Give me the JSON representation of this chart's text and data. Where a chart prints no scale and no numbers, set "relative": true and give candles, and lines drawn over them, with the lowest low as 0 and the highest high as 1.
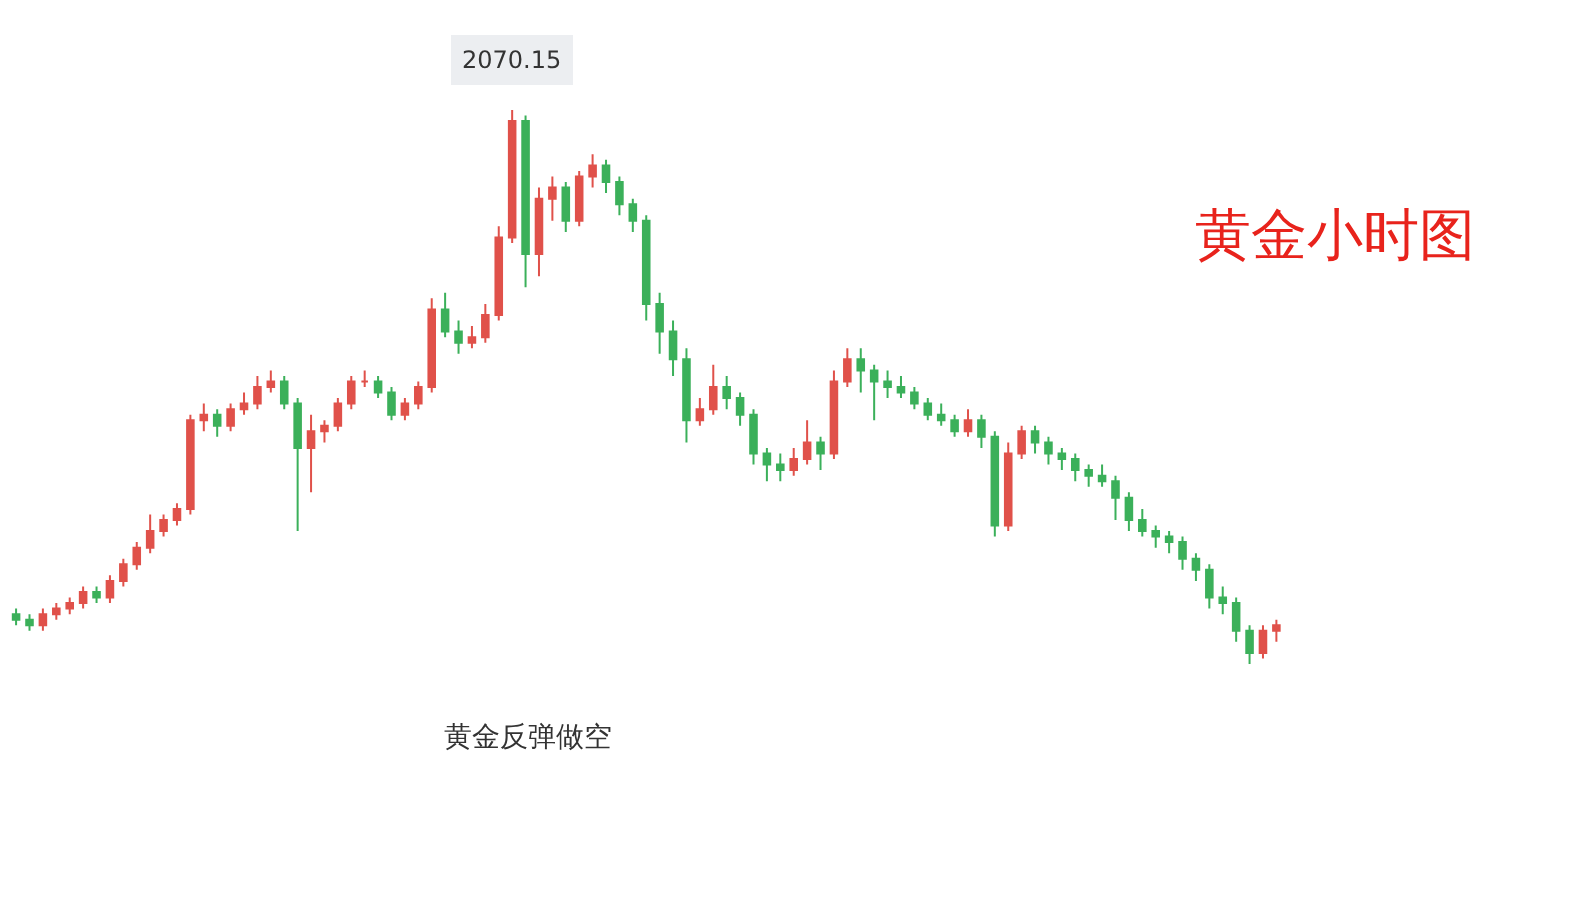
{
  "chart_data": {
    "type": "candlestick",
    "title": "黄金小时图",
    "relative": true,
    "legend": false,
    "annotations": [
      {
        "text": "2070.15",
        "y": 1.0
      },
      "黄金反弹做空"
    ],
    "categories": [
      null,
      null,
      null,
      null,
      null,
      null,
      null,
      null,
      null,
      null,
      null,
      null,
      null,
      null,
      null,
      null,
      null,
      null,
      null,
      null,
      null,
      null,
      null,
      null,
      null,
      null,
      null,
      null,
      null,
      null,
      null,
      null,
      null,
      null,
      null,
      null,
      null,
      null,
      null,
      null,
      null,
      null,
      null,
      null,
      null,
      null,
      null,
      null,
      null,
      null,
      null,
      null,
      null,
      null,
      null,
      null,
      null,
      null,
      null,
      null,
      null,
      null,
      null,
      null,
      null,
      null,
      null,
      null,
      null,
      null,
      null,
      null,
      null,
      null,
      null,
      null,
      null,
      null,
      null,
      null,
      null,
      null,
      null,
      null,
      null,
      null,
      null,
      null,
      null,
      null,
      null,
      null,
      null,
      null,
      null
    ],
    "ohlc": [
      [
        0.09,
        0.1,
        0.07,
        0.08
      ],
      [
        0.08,
        0.09,
        0.06,
        0.07
      ],
      [
        0.07,
        0.1,
        0.06,
        0.09
      ],
      [
        0.09,
        0.11,
        0.08,
        0.1
      ],
      [
        0.1,
        0.12,
        0.09,
        0.11
      ],
      [
        0.11,
        0.14,
        0.1,
        0.13
      ],
      [
        0.13,
        0.14,
        0.11,
        0.12
      ],
      [
        0.12,
        0.16,
        0.11,
        0.15
      ],
      [
        0.15,
        0.19,
        0.14,
        0.18
      ],
      [
        0.18,
        0.22,
        0.17,
        0.21
      ],
      [
        0.21,
        0.27,
        0.2,
        0.24
      ],
      [
        0.24,
        0.27,
        0.23,
        0.26
      ],
      [
        0.26,
        0.29,
        0.25,
        0.28
      ],
      [
        0.28,
        0.45,
        0.27,
        0.44
      ],
      [
        0.44,
        0.47,
        0.42,
        0.45
      ],
      [
        0.45,
        0.46,
        0.41,
        0.43
      ],
      [
        0.43,
        0.47,
        0.42,
        0.46
      ],
      [
        0.46,
        0.49,
        0.45,
        0.47
      ],
      [
        0.47,
        0.52,
        0.46,
        0.5
      ],
      [
        0.5,
        0.53,
        0.49,
        0.51
      ],
      [
        0.51,
        0.52,
        0.46,
        0.47
      ],
      [
        0.47,
        0.48,
        0.24,
        0.39
      ],
      [
        0.39,
        0.45,
        0.31,
        0.42
      ],
      [
        0.42,
        0.44,
        0.4,
        0.43
      ],
      [
        0.43,
        0.48,
        0.42,
        0.47
      ],
      [
        0.47,
        0.52,
        0.46,
        0.51
      ],
      [
        0.51,
        0.53,
        0.5,
        0.51
      ],
      [
        0.51,
        0.52,
        0.48,
        0.49
      ],
      [
        0.49,
        0.5,
        0.44,
        0.45
      ],
      [
        0.45,
        0.48,
        0.44,
        0.47
      ],
      [
        0.47,
        0.51,
        0.46,
        0.5
      ],
      [
        0.5,
        0.66,
        0.49,
        0.64
      ],
      [
        0.64,
        0.67,
        0.59,
        0.6
      ],
      [
        0.6,
        0.62,
        0.56,
        0.58
      ],
      [
        0.58,
        0.61,
        0.57,
        0.59
      ],
      [
        0.59,
        0.65,
        0.58,
        0.63
      ],
      [
        0.63,
        0.79,
        0.62,
        0.77
      ],
      [
        0.77,
        1.0,
        0.76,
        0.98
      ],
      [
        0.98,
        0.99,
        0.68,
        0.74
      ],
      [
        0.74,
        0.86,
        0.7,
        0.84
      ],
      [
        0.84,
        0.88,
        0.8,
        0.86
      ],
      [
        0.86,
        0.87,
        0.78,
        0.8
      ],
      [
        0.8,
        0.89,
        0.79,
        0.88
      ],
      [
        0.88,
        0.92,
        0.86,
        0.9
      ],
      [
        0.9,
        0.91,
        0.85,
        0.87
      ],
      [
        0.87,
        0.88,
        0.81,
        0.83
      ],
      [
        0.83,
        0.84,
        0.78,
        0.8
      ],
      [
        0.8,
        0.81,
        0.62,
        0.65
      ],
      [
        0.65,
        0.67,
        0.56,
        0.6
      ],
      [
        0.6,
        0.62,
        0.52,
        0.55
      ],
      [
        0.55,
        0.57,
        0.4,
        0.44
      ],
      [
        0.44,
        0.48,
        0.43,
        0.46
      ],
      [
        0.46,
        0.54,
        0.45,
        0.5
      ],
      [
        0.5,
        0.52,
        0.46,
        0.48
      ],
      [
        0.48,
        0.49,
        0.43,
        0.45
      ],
      [
        0.45,
        0.46,
        0.36,
        0.38
      ],
      [
        0.38,
        0.39,
        0.33,
        0.36
      ],
      [
        0.36,
        0.38,
        0.33,
        0.35
      ],
      [
        0.35,
        0.39,
        0.34,
        0.37
      ],
      [
        0.37,
        0.44,
        0.36,
        0.4
      ],
      [
        0.4,
        0.41,
        0.35,
        0.38
      ],
      [
        0.38,
        0.53,
        0.37,
        0.51
      ],
      [
        0.51,
        0.57,
        0.5,
        0.55
      ],
      [
        0.55,
        0.57,
        0.49,
        0.53
      ],
      [
        0.53,
        0.54,
        0.44,
        0.51
      ],
      [
        0.51,
        0.53,
        0.48,
        0.5
      ],
      [
        0.5,
        0.52,
        0.48,
        0.49
      ],
      [
        0.49,
        0.5,
        0.46,
        0.47
      ],
      [
        0.47,
        0.48,
        0.44,
        0.45
      ],
      [
        0.45,
        0.47,
        0.43,
        0.44
      ],
      [
        0.44,
        0.45,
        0.41,
        0.42
      ],
      [
        0.42,
        0.46,
        0.41,
        0.44
      ],
      [
        0.44,
        0.45,
        0.39,
        0.41
      ],
      [
        0.41,
        0.42,
        0.23,
        0.25
      ],
      [
        0.25,
        0.4,
        0.24,
        0.38
      ],
      [
        0.38,
        0.43,
        0.37,
        0.42
      ],
      [
        0.42,
        0.43,
        0.38,
        0.4
      ],
      [
        0.4,
        0.41,
        0.36,
        0.38
      ],
      [
        0.38,
        0.39,
        0.35,
        0.37
      ],
      [
        0.37,
        0.38,
        0.33,
        0.35
      ],
      [
        0.35,
        0.36,
        0.32,
        0.34
      ],
      [
        0.34,
        0.36,
        0.32,
        0.33
      ],
      [
        0.33,
        0.34,
        0.26,
        0.3
      ],
      [
        0.3,
        0.31,
        0.24,
        0.26
      ],
      [
        0.26,
        0.28,
        0.23,
        0.24
      ],
      [
        0.24,
        0.25,
        0.21,
        0.23
      ],
      [
        0.23,
        0.24,
        0.2,
        0.22
      ],
      [
        0.22,
        0.23,
        0.17,
        0.19
      ],
      [
        0.19,
        0.2,
        0.15,
        0.17
      ],
      [
        0.17,
        0.18,
        0.1,
        0.12
      ],
      [
        0.12,
        0.14,
        0.09,
        0.11
      ],
      [
        0.11,
        0.12,
        0.04,
        0.06
      ],
      [
        0.06,
        0.07,
        0.0,
        0.02
      ],
      [
        0.02,
        0.07,
        0.01,
        0.06
      ],
      [
        0.06,
        0.08,
        0.04,
        0.07
      ]
    ]
  }
}
